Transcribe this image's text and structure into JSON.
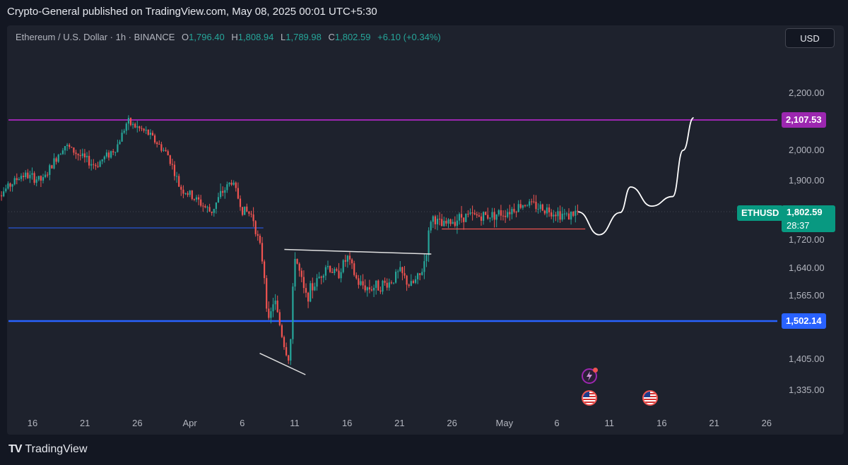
{
  "header": {
    "publish_line": "Crypto-General published on TradingView.com, May 08, 2025 00:01 UTC+5:30"
  },
  "legend": {
    "symbol": "Ethereum / U.S. Dollar · 1h · BINANCE",
    "open_key": "O",
    "open": "1,796.40",
    "high_key": "H",
    "high": "1,808.94",
    "low_key": "L",
    "low": "1,789.98",
    "close_key": "C",
    "close": "1,802.59",
    "change": "+6.10 (+0.34%)"
  },
  "currency_button": "USD",
  "price_labels": {
    "resistance": "2,107.53",
    "support": "1,502.14",
    "symbol": "ETHUSD",
    "current": "1,802.59",
    "countdown": "28:37"
  },
  "brand": {
    "logo": "TV",
    "name": "TradingView"
  },
  "colors": {
    "background": "#1e222d",
    "up": "#26a69a",
    "down": "#ef5350",
    "resistance": "#9c27b0",
    "support": "#2962ff",
    "current": "#089981"
  },
  "events": [
    {
      "icon": "lightning-icon",
      "date": "May 7"
    },
    {
      "icon": "us-flag-icon",
      "date": "May 7"
    },
    {
      "icon": "us-flag-icon",
      "date": "May 14"
    }
  ],
  "chart_data": {
    "type": "candlestick",
    "title": "Ethereum / U.S. Dollar · 1h · BINANCE",
    "x_tick_labels": [
      "16",
      "21",
      "26",
      "Apr",
      "6",
      "11",
      "16",
      "21",
      "26",
      "May",
      "6",
      "11",
      "16",
      "21",
      "26"
    ],
    "y_tick_labels": [
      "2,200.00",
      "2,000.00",
      "1,900.00",
      "1,720.00",
      "1,640.00",
      "1,565.00",
      "1,405.00",
      "1,335.00"
    ],
    "ylim": [
      1300,
      2260
    ],
    "path_points": [
      {
        "x": "2025-03-12",
        "y": 1890
      },
      {
        "x": "2025-03-13",
        "y": 1860
      },
      {
        "x": "2025-03-15",
        "y": 1920
      },
      {
        "x": "2025-03-17",
        "y": 1900
      },
      {
        "x": "2025-03-19",
        "y": 2020
      },
      {
        "x": "2025-03-21",
        "y": 1970
      },
      {
        "x": "2025-03-22",
        "y": 1950
      },
      {
        "x": "2025-03-24",
        "y": 2010
      },
      {
        "x": "2025-03-25",
        "y": 2100
      },
      {
        "x": "2025-03-27",
        "y": 2060
      },
      {
        "x": "2025-03-29",
        "y": 1980
      },
      {
        "x": "2025-03-30",
        "y": 1880
      },
      {
        "x": "2025-04-01",
        "y": 1830
      },
      {
        "x": "2025-04-02",
        "y": 1800
      },
      {
        "x": "2025-04-03",
        "y": 1860
      },
      {
        "x": "2025-04-04",
        "y": 1900
      },
      {
        "x": "2025-04-05",
        "y": 1810
      },
      {
        "x": "2025-04-06",
        "y": 1790
      },
      {
        "x": "2025-04-07",
        "y": 1650
      },
      {
        "x": "2025-04-07T12:00",
        "y": 1490
      },
      {
        "x": "2025-04-08",
        "y": 1560
      },
      {
        "x": "2025-04-09",
        "y": 1440
      },
      {
        "x": "2025-04-09T12:00",
        "y": 1400
      },
      {
        "x": "2025-04-10",
        "y": 1680
      },
      {
        "x": "2025-04-11",
        "y": 1560
      },
      {
        "x": "2025-04-12",
        "y": 1600
      },
      {
        "x": "2025-04-13",
        "y": 1650
      },
      {
        "x": "2025-04-14",
        "y": 1620
      },
      {
        "x": "2025-04-15",
        "y": 1670
      },
      {
        "x": "2025-04-16",
        "y": 1600
      },
      {
        "x": "2025-04-17",
        "y": 1585
      },
      {
        "x": "2025-04-19",
        "y": 1600
      },
      {
        "x": "2025-04-20",
        "y": 1630
      },
      {
        "x": "2025-04-21",
        "y": 1590
      },
      {
        "x": "2025-04-22",
        "y": 1620
      },
      {
        "x": "2025-04-22T12:00",
        "y": 1680
      },
      {
        "x": "2025-04-23",
        "y": 1790
      },
      {
        "x": "2025-04-24",
        "y": 1760
      },
      {
        "x": "2025-04-26",
        "y": 1790
      },
      {
        "x": "2025-04-28",
        "y": 1790
      },
      {
        "x": "2025-04-30",
        "y": 1800
      },
      {
        "x": "2025-05-02",
        "y": 1830
      },
      {
        "x": "2025-05-04",
        "y": 1810
      },
      {
        "x": "2025-05-06",
        "y": 1790
      },
      {
        "x": "2025-05-07",
        "y": 1802.59
      }
    ],
    "overlays": {
      "resistance": 2107.53,
      "support": 1502.14,
      "blue_level": 1755,
      "red_support": 1752,
      "upper_trendline_start": {
        "x": "2025-04-09",
        "y": 1693
      },
      "upper_trendline_end": {
        "x": "2025-04-23",
        "y": 1680
      },
      "lower_trendline_start": {
        "x": "2025-04-08",
        "y": 1420
      },
      "lower_trendline_end": {
        "x": "2025-04-10",
        "y": 1370
      },
      "projection": [
        {
          "x": "2025-05-07",
          "y": 1802
        },
        {
          "x": "2025-05-09",
          "y": 1735
        },
        {
          "x": "2025-05-11",
          "y": 1800
        },
        {
          "x": "2025-05-12",
          "y": 1880
        },
        {
          "x": "2025-05-14",
          "y": 1820
        },
        {
          "x": "2025-05-16",
          "y": 1850
        },
        {
          "x": "2025-05-17",
          "y": 2000
        },
        {
          "x": "2025-05-18",
          "y": 2115
        }
      ]
    },
    "grid": false,
    "legend_position": "top-left"
  }
}
